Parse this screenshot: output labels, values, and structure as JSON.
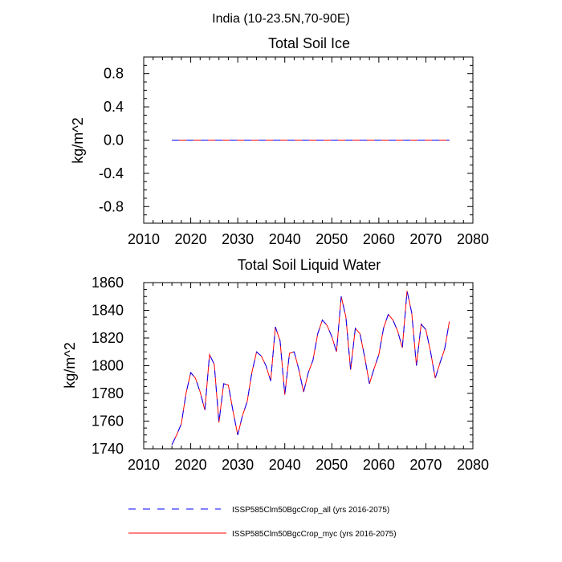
{
  "figure": {
    "title": "India (10-23.5N,70-90E)"
  },
  "legend": {
    "items": [
      {
        "label": "ISSP585Clm50BgcCrop_all (yrs 2016-2075)",
        "color": "#0000ff",
        "style": "dashed"
      },
      {
        "label": "ISSP585Clm50BgcCrop_myc (yrs 2016-2075)",
        "color": "#ff0000",
        "style": "solid"
      }
    ]
  },
  "chart_data": [
    {
      "type": "line",
      "title": "Total Soil Ice",
      "xlabel": "",
      "ylabel": "kg/m^2",
      "xlim": [
        2010,
        2080
      ],
      "ylim": [
        -1.0,
        1.0
      ],
      "xticks": [
        2010,
        2020,
        2030,
        2040,
        2050,
        2060,
        2070,
        2080
      ],
      "yticks": [
        -0.8,
        -0.4,
        0.0,
        0.4,
        0.8
      ],
      "ytick_labels": [
        "-0.8",
        "-0.4",
        "0.0",
        "0.4",
        "0.8"
      ],
      "x": [
        2016,
        2075
      ],
      "series": [
        {
          "name": "ISSP585Clm50BgcCrop_all (yrs 2016-2075)",
          "color": "#0000ff",
          "style": "dashed",
          "values": [
            0,
            0
          ]
        },
        {
          "name": "ISSP585Clm50BgcCrop_myc (yrs 2016-2075)",
          "color": "#ff0000",
          "style": "solid",
          "values": [
            0,
            0
          ]
        }
      ]
    },
    {
      "type": "line",
      "title": "Total Soil Liquid Water",
      "xlabel": "",
      "ylabel": "kg/m^2",
      "xlim": [
        2010,
        2080
      ],
      "ylim": [
        1740,
        1860
      ],
      "xticks": [
        2010,
        2020,
        2030,
        2040,
        2050,
        2060,
        2070,
        2080
      ],
      "yticks": [
        1740,
        1760,
        1780,
        1800,
        1820,
        1840,
        1860
      ],
      "ytick_labels": [
        "1740",
        "1760",
        "1780",
        "1800",
        "1820",
        "1840",
        "1860"
      ],
      "x": [
        2016,
        2017,
        2018,
        2019,
        2020,
        2021,
        2022,
        2023,
        2024,
        2025,
        2026,
        2027,
        2028,
        2029,
        2030,
        2031,
        2032,
        2033,
        2034,
        2035,
        2036,
        2037,
        2038,
        2039,
        2040,
        2041,
        2042,
        2043,
        2044,
        2045,
        2046,
        2047,
        2048,
        2049,
        2050,
        2051,
        2052,
        2053,
        2054,
        2055,
        2056,
        2057,
        2058,
        2059,
        2060,
        2061,
        2062,
        2063,
        2064,
        2065,
        2066,
        2067,
        2068,
        2069,
        2070,
        2071,
        2072,
        2073,
        2074,
        2075
      ],
      "series": [
        {
          "name": "ISSP585Clm50BgcCrop_all (yrs 2016-2075)",
          "color": "#0000ff",
          "style": "dashed",
          "values": [
            1743,
            1750,
            1758,
            1780,
            1795,
            1791,
            1781,
            1768,
            1808,
            1801,
            1759,
            1787,
            1786,
            1767,
            1750,
            1764,
            1774,
            1795,
            1810,
            1807,
            1800,
            1789,
            1828,
            1818,
            1779,
            1809,
            1810,
            1797,
            1781,
            1795,
            1804,
            1823,
            1833,
            1829,
            1821,
            1810,
            1850,
            1835,
            1797,
            1827,
            1823,
            1806,
            1787,
            1798,
            1808,
            1827,
            1837,
            1833,
            1825,
            1813,
            1854,
            1838,
            1800,
            1830,
            1826,
            1810,
            1791,
            1802,
            1812,
            1832
          ]
        },
        {
          "name": "ISSP585Clm50BgcCrop_myc (yrs 2016-2075)",
          "color": "#ff0000",
          "style": "solid",
          "values": [
            1743,
            1750,
            1758,
            1780,
            1795,
            1791,
            1781,
            1768,
            1808,
            1801,
            1759,
            1787,
            1786,
            1767,
            1750,
            1764,
            1774,
            1795,
            1810,
            1807,
            1800,
            1789,
            1828,
            1818,
            1779,
            1809,
            1810,
            1797,
            1781,
            1795,
            1804,
            1823,
            1833,
            1829,
            1821,
            1810,
            1850,
            1835,
            1797,
            1827,
            1823,
            1806,
            1787,
            1798,
            1808,
            1827,
            1837,
            1833,
            1825,
            1813,
            1854,
            1838,
            1800,
            1830,
            1826,
            1810,
            1791,
            1802,
            1812,
            1832
          ]
        }
      ]
    }
  ]
}
